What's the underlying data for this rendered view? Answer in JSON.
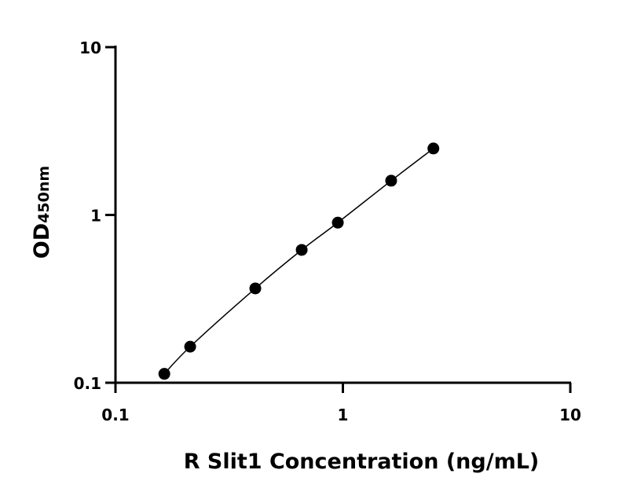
{
  "chart_data": {
    "type": "scatter",
    "xlabel": "R Slit1 Concentration (ng/mL)",
    "ylabel": "OD",
    "ylabel_sub": "450nm",
    "series": [
      {
        "color": "#000000",
        "x": [
          0.164,
          0.213,
          0.412,
          0.659,
          0.95,
          1.63,
          2.5
        ],
        "values": [
          0.113,
          0.164,
          0.365,
          0.619,
          0.9,
          1.6,
          2.49
        ]
      }
    ],
    "line": true,
    "xscale": "log",
    "yscale": "log",
    "xlim": [
      0.1,
      10
    ],
    "ylim": [
      0.1,
      10
    ],
    "xticks": [
      0.1,
      1,
      10
    ],
    "yticks": [
      0.1,
      1,
      10
    ]
  }
}
